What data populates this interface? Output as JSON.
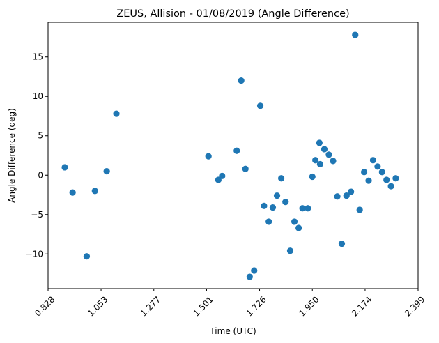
{
  "chart_data": {
    "type": "scatter",
    "title": "ZEUS, Allision - 01/08/2019 (Angle Difference)",
    "xlabel": "Time (UTC)",
    "ylabel": "Angle Difference (deg)",
    "xlim": [
      0.828,
      2.399
    ],
    "ylim": [
      -14.4,
      19.4
    ],
    "xticks": [
      "0.828",
      "1.053",
      "1.277",
      "1.501",
      "1.726",
      "1.950",
      "2.174",
      "2.399"
    ],
    "xtick_values": [
      0.828,
      1.053,
      1.277,
      1.501,
      1.726,
      1.95,
      2.174,
      2.399
    ],
    "xtick_rotation": 45,
    "yticks": [
      15,
      10,
      5,
      0,
      -5,
      -10
    ],
    "ytick_labels": [
      "15",
      "10",
      "5",
      "0",
      "−5",
      "−10"
    ],
    "grid": false,
    "marker_color": "#1f77b4",
    "points": [
      {
        "x": 0.899,
        "y": 1.0
      },
      {
        "x": 0.932,
        "y": -2.2
      },
      {
        "x": 0.992,
        "y": -10.3
      },
      {
        "x": 1.027,
        "y": -2.0
      },
      {
        "x": 1.077,
        "y": 0.5
      },
      {
        "x": 1.118,
        "y": 7.8
      },
      {
        "x": 1.509,
        "y": 2.4
      },
      {
        "x": 1.551,
        "y": -0.6
      },
      {
        "x": 1.567,
        "y": -0.1
      },
      {
        "x": 1.629,
        "y": 3.1
      },
      {
        "x": 1.648,
        "y": 12.0
      },
      {
        "x": 1.666,
        "y": 0.8
      },
      {
        "x": 1.684,
        "y": -12.9
      },
      {
        "x": 1.703,
        "y": -12.1
      },
      {
        "x": 1.729,
        "y": 8.8
      },
      {
        "x": 1.745,
        "y": -3.9
      },
      {
        "x": 1.765,
        "y": -5.9
      },
      {
        "x": 1.782,
        "y": -4.1
      },
      {
        "x": 1.8,
        "y": -2.6
      },
      {
        "x": 1.818,
        "y": -0.4
      },
      {
        "x": 1.836,
        "y": -3.4
      },
      {
        "x": 1.856,
        "y": -9.6
      },
      {
        "x": 1.874,
        "y": -5.9
      },
      {
        "x": 1.892,
        "y": -6.7
      },
      {
        "x": 1.908,
        "y": -4.2
      },
      {
        "x": 1.931,
        "y": -4.2
      },
      {
        "x": 1.95,
        "y": -0.2
      },
      {
        "x": 1.963,
        "y": 1.9
      },
      {
        "x": 1.98,
        "y": 4.1
      },
      {
        "x": 1.983,
        "y": 1.4
      },
      {
        "x": 2.001,
        "y": 3.3
      },
      {
        "x": 2.02,
        "y": 2.6
      },
      {
        "x": 2.038,
        "y": 1.8
      },
      {
        "x": 2.056,
        "y": -2.7
      },
      {
        "x": 2.075,
        "y": -8.7
      },
      {
        "x": 2.095,
        "y": -2.6
      },
      {
        "x": 2.114,
        "y": -2.1
      },
      {
        "x": 2.132,
        "y": 17.8
      },
      {
        "x": 2.151,
        "y": -4.4
      },
      {
        "x": 2.17,
        "y": 0.4
      },
      {
        "x": 2.189,
        "y": -0.7
      },
      {
        "x": 2.208,
        "y": 1.9
      },
      {
        "x": 2.227,
        "y": 1.1
      },
      {
        "x": 2.246,
        "y": 0.4
      },
      {
        "x": 2.265,
        "y": -0.6
      },
      {
        "x": 2.284,
        "y": -1.4
      },
      {
        "x": 2.304,
        "y": -0.4
      }
    ]
  }
}
